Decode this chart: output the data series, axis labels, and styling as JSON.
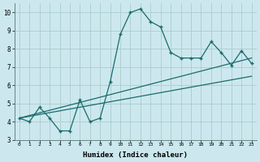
{
  "xlabel": "Humidex (Indice chaleur)",
  "ylabel": "",
  "bg_color": "#cce8ee",
  "grid_color": "#aacccc",
  "line_color": "#1a6b6b",
  "curve_x": [
    0,
    1,
    2,
    3,
    4,
    5,
    6,
    7,
    8,
    9,
    10,
    11,
    12,
    13,
    14,
    15,
    16,
    17,
    18,
    19,
    20,
    21,
    22,
    23
  ],
  "curve_y": [
    4.2,
    4.0,
    4.8,
    4.2,
    3.5,
    3.5,
    5.2,
    4.0,
    4.2,
    6.2,
    8.8,
    10.0,
    10.2,
    9.5,
    9.2,
    7.8,
    7.5,
    7.5,
    7.5,
    8.4,
    7.8,
    7.1,
    7.9,
    7.2
  ],
  "trend1_x": [
    0,
    23
  ],
  "trend1_y": [
    4.2,
    7.5
  ],
  "trend2_x": [
    0,
    23
  ],
  "trend2_y": [
    4.2,
    6.5
  ],
  "xlim": [
    -0.5,
    23.5
  ],
  "ylim": [
    3.0,
    10.5
  ],
  "yticks": [
    3,
    4,
    5,
    6,
    7,
    8,
    9,
    10
  ],
  "xticks": [
    0,
    1,
    2,
    3,
    4,
    5,
    6,
    7,
    8,
    9,
    10,
    11,
    12,
    13,
    14,
    15,
    16,
    17,
    18,
    19,
    20,
    21,
    22,
    23
  ]
}
